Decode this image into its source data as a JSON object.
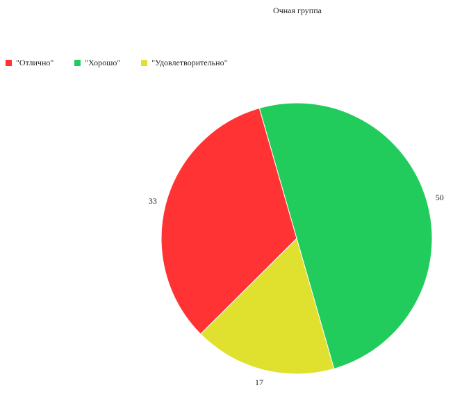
{
  "chart_data": {
    "type": "pie",
    "title": "Очная группа",
    "categories": [
      "\"Отлично\"",
      "\"Хорошо\"",
      "\"Удовлетворительно\""
    ],
    "values": [
      33,
      50,
      17
    ],
    "colors": [
      "#ff3333",
      "#22cc5c",
      "#e0e02e"
    ],
    "legend_position": "top-left"
  }
}
